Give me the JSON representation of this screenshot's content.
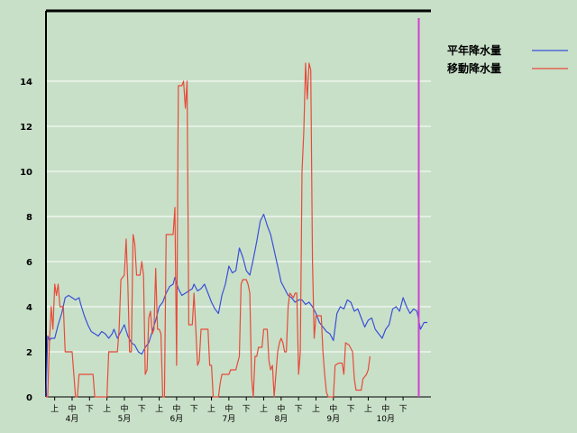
{
  "chart_data": {
    "type": "line",
    "title": "",
    "xlabel": "",
    "ylabel": "",
    "ylim": [
      0,
      16
    ],
    "y_ticks": [
      0,
      2,
      4,
      6,
      8,
      10,
      12,
      14
    ],
    "grid": true,
    "legend_position": "top-right",
    "x_range_days": [
      1,
      222
    ],
    "x_ticks": [
      {
        "day": 6,
        "label": "上"
      },
      {
        "day": 16,
        "label": "中"
      },
      {
        "day": 26,
        "label": "下"
      },
      {
        "day": 36,
        "label": "上"
      },
      {
        "day": 46,
        "label": "中"
      },
      {
        "day": 56,
        "label": "下"
      },
      {
        "day": 66,
        "label": "上"
      },
      {
        "day": 76,
        "label": "中"
      },
      {
        "day": 86,
        "label": "下"
      },
      {
        "day": 96,
        "label": "上"
      },
      {
        "day": 106,
        "label": "中"
      },
      {
        "day": 116,
        "label": "下"
      },
      {
        "day": 126,
        "label": "上"
      },
      {
        "day": 136,
        "label": "中"
      },
      {
        "day": 146,
        "label": "下"
      },
      {
        "day": 156,
        "label": "上"
      },
      {
        "day": 166,
        "label": "中"
      },
      {
        "day": 176,
        "label": "下"
      },
      {
        "day": 186,
        "label": "上"
      },
      {
        "day": 196,
        "label": "中"
      },
      {
        "day": 206,
        "label": "下"
      }
    ],
    "month_labels": [
      {
        "day": 16,
        "label": "4月"
      },
      {
        "day": 46,
        "label": "5月"
      },
      {
        "day": 76,
        "label": "6月"
      },
      {
        "day": 106,
        "label": "7月"
      },
      {
        "day": 136,
        "label": "8月"
      },
      {
        "day": 166,
        "label": "9月"
      },
      {
        "day": 196,
        "label": "10月"
      }
    ],
    "marker_day": 215,
    "series": [
      {
        "name": "平年降水量",
        "color": "#3a4fd8",
        "points": [
          [
            1,
            0
          ],
          [
            2,
            2.7
          ],
          [
            3,
            2.5
          ],
          [
            4,
            2.6
          ],
          [
            6,
            2.6
          ],
          [
            7,
            2.9
          ],
          [
            8,
            3.2
          ],
          [
            10,
            3.7
          ],
          [
            12,
            4.4
          ],
          [
            14,
            4.5
          ],
          [
            16,
            4.4
          ],
          [
            18,
            4.3
          ],
          [
            20,
            4.4
          ],
          [
            21,
            4.1
          ],
          [
            23,
            3.6
          ],
          [
            25,
            3.2
          ],
          [
            27,
            2.9
          ],
          [
            29,
            2.8
          ],
          [
            31,
            2.7
          ],
          [
            33,
            2.9
          ],
          [
            35,
            2.8
          ],
          [
            37,
            2.6
          ],
          [
            39,
            2.8
          ],
          [
            40,
            3.0
          ],
          [
            42,
            2.6
          ],
          [
            44,
            2.9
          ],
          [
            46,
            3.2
          ],
          [
            48,
            2.7
          ],
          [
            50,
            2.4
          ],
          [
            52,
            2.3
          ],
          [
            54,
            2.0
          ],
          [
            56,
            1.9
          ],
          [
            58,
            2.2
          ],
          [
            60,
            2.4
          ],
          [
            62,
            2.9
          ],
          [
            64,
            3.4
          ],
          [
            66,
            4.0
          ],
          [
            68,
            4.2
          ],
          [
            70,
            4.6
          ],
          [
            72,
            4.9
          ],
          [
            74,
            5.0
          ],
          [
            75,
            5.3
          ],
          [
            77,
            4.8
          ],
          [
            79,
            4.5
          ],
          [
            81,
            4.6
          ],
          [
            83,
            4.7
          ],
          [
            85,
            4.8
          ],
          [
            86,
            5.0
          ],
          [
            88,
            4.7
          ],
          [
            90,
            4.8
          ],
          [
            92,
            5.0
          ],
          [
            94,
            4.6
          ],
          [
            96,
            4.2
          ],
          [
            98,
            3.9
          ],
          [
            100,
            3.7
          ],
          [
            102,
            4.5
          ],
          [
            104,
            5.0
          ],
          [
            106,
            5.8
          ],
          [
            108,
            5.5
          ],
          [
            110,
            5.6
          ],
          [
            112,
            6.6
          ],
          [
            114,
            6.2
          ],
          [
            116,
            5.6
          ],
          [
            118,
            5.4
          ],
          [
            120,
            6.1
          ],
          [
            122,
            6.9
          ],
          [
            124,
            7.8
          ],
          [
            126,
            8.1
          ],
          [
            128,
            7.6
          ],
          [
            130,
            7.2
          ],
          [
            132,
            6.5
          ],
          [
            134,
            5.8
          ],
          [
            136,
            5.1
          ],
          [
            138,
            4.8
          ],
          [
            140,
            4.5
          ],
          [
            142,
            4.4
          ],
          [
            144,
            4.2
          ],
          [
            146,
            4.3
          ],
          [
            148,
            4.3
          ],
          [
            150,
            4.1
          ],
          [
            152,
            4.2
          ],
          [
            154,
            4.0
          ],
          [
            156,
            3.7
          ],
          [
            158,
            3.3
          ],
          [
            160,
            3.1
          ],
          [
            162,
            2.9
          ],
          [
            164,
            2.8
          ],
          [
            166,
            2.5
          ],
          [
            168,
            3.7
          ],
          [
            170,
            4.0
          ],
          [
            172,
            3.9
          ],
          [
            174,
            4.3
          ],
          [
            176,
            4.2
          ],
          [
            178,
            3.8
          ],
          [
            180,
            3.9
          ],
          [
            182,
            3.5
          ],
          [
            184,
            3.1
          ],
          [
            186,
            3.4
          ],
          [
            188,
            3.5
          ],
          [
            190,
            3.0
          ],
          [
            192,
            2.8
          ],
          [
            194,
            2.6
          ],
          [
            196,
            3.0
          ],
          [
            198,
            3.2
          ],
          [
            200,
            3.9
          ],
          [
            202,
            4.0
          ],
          [
            204,
            3.8
          ],
          [
            206,
            4.4
          ],
          [
            208,
            4.0
          ],
          [
            210,
            3.7
          ],
          [
            212,
            3.9
          ],
          [
            214,
            3.8
          ],
          [
            216,
            3.0
          ],
          [
            218,
            3.3
          ],
          [
            220,
            3.3
          ]
        ]
      },
      {
        "name": "移動降水量",
        "color": "#e84a3a",
        "points": [
          [
            1,
            0
          ],
          [
            2,
            0
          ],
          [
            3,
            2.5
          ],
          [
            4,
            4.0
          ],
          [
            5,
            3.0
          ],
          [
            6,
            5.0
          ],
          [
            7,
            4.5
          ],
          [
            8,
            5.0
          ],
          [
            9,
            4.0
          ],
          [
            10,
            4.0
          ],
          [
            11,
            4.0
          ],
          [
            12,
            2.0
          ],
          [
            14,
            2.0
          ],
          [
            16,
            2.0
          ],
          [
            18,
            0
          ],
          [
            19,
            0
          ],
          [
            20,
            1.0
          ],
          [
            24,
            1.0
          ],
          [
            28,
            1.0
          ],
          [
            29,
            0
          ],
          [
            36,
            0
          ],
          [
            37,
            2.0
          ],
          [
            41,
            2.0
          ],
          [
            42,
            2.0
          ],
          [
            43,
            3.0
          ],
          [
            44,
            5.2
          ],
          [
            46,
            5.4
          ],
          [
            47,
            7.0
          ],
          [
            48,
            5.0
          ],
          [
            49,
            2.0
          ],
          [
            50,
            2.0
          ],
          [
            51,
            7.2
          ],
          [
            52,
            6.8
          ],
          [
            53,
            5.4
          ],
          [
            55,
            5.4
          ],
          [
            56,
            6.0
          ],
          [
            57,
            5.4
          ],
          [
            58,
            1.0
          ],
          [
            59,
            1.2
          ],
          [
            60,
            3.5
          ],
          [
            61,
            3.8
          ],
          [
            62,
            2.8
          ],
          [
            63,
            3.0
          ],
          [
            64,
            5.7
          ],
          [
            65,
            3.0
          ],
          [
            66,
            3.0
          ],
          [
            67,
            2.8
          ],
          [
            68,
            0
          ],
          [
            69,
            0
          ],
          [
            70,
            7.2
          ],
          [
            71,
            7.2
          ],
          [
            73,
            7.2
          ],
          [
            74,
            7.2
          ],
          [
            75,
            8.4
          ],
          [
            76,
            1.4
          ],
          [
            77,
            13.8
          ],
          [
            79,
            13.8
          ],
          [
            80,
            14.0
          ],
          [
            81,
            12.8
          ],
          [
            82,
            14.0
          ],
          [
            83,
            3.2
          ],
          [
            85,
            3.2
          ],
          [
            86,
            4.6
          ],
          [
            87,
            3.0
          ],
          [
            88,
            1.4
          ],
          [
            89,
            1.6
          ],
          [
            90,
            3.0
          ],
          [
            92,
            3.0
          ],
          [
            94,
            3.0
          ],
          [
            95,
            1.4
          ],
          [
            96,
            1.4
          ],
          [
            97,
            0
          ],
          [
            98,
            0
          ],
          [
            100,
            0
          ],
          [
            101,
            0.6
          ],
          [
            102,
            1.0
          ],
          [
            104,
            1.0
          ],
          [
            106,
            1.0
          ],
          [
            107,
            1.2
          ],
          [
            110,
            1.2
          ],
          [
            111,
            1.5
          ],
          [
            112,
            1.8
          ],
          [
            113,
            5.0
          ],
          [
            114,
            5.2
          ],
          [
            116,
            5.2
          ],
          [
            117,
            5.0
          ],
          [
            118,
            4.6
          ],
          [
            119,
            0.9
          ],
          [
            120,
            0
          ],
          [
            121,
            1.8
          ],
          [
            122,
            1.8
          ],
          [
            123,
            2.2
          ],
          [
            125,
            2.2
          ],
          [
            126,
            3.0
          ],
          [
            127,
            3.0
          ],
          [
            128,
            3.0
          ],
          [
            129,
            1.6
          ],
          [
            130,
            1.2
          ],
          [
            131,
            1.4
          ],
          [
            132,
            0
          ],
          [
            133,
            1.0
          ],
          [
            134,
            2.0
          ],
          [
            135,
            2.4
          ],
          [
            136,
            2.6
          ],
          [
            137,
            2.4
          ],
          [
            138,
            2.0
          ],
          [
            139,
            2.0
          ],
          [
            140,
            4.0
          ],
          [
            141,
            4.6
          ],
          [
            143,
            4.4
          ],
          [
            144,
            4.6
          ],
          [
            145,
            4.6
          ],
          [
            146,
            1.0
          ],
          [
            147,
            2.0
          ],
          [
            148,
            10.0
          ],
          [
            149,
            11.8
          ],
          [
            150,
            14.8
          ],
          [
            151,
            13.2
          ],
          [
            152,
            14.8
          ],
          [
            153,
            14.5
          ],
          [
            154,
            6.0
          ],
          [
            155,
            2.6
          ],
          [
            156,
            3.6
          ],
          [
            157,
            3.6
          ],
          [
            159,
            3.6
          ],
          [
            160,
            2.0
          ],
          [
            161,
            1.0
          ],
          [
            162,
            0.2
          ],
          [
            163,
            0
          ],
          [
            164,
            0
          ],
          [
            165,
            0
          ],
          [
            166,
            0
          ],
          [
            167,
            1.4
          ],
          [
            169,
            1.5
          ],
          [
            171,
            1.5
          ],
          [
            172,
            1.0
          ],
          [
            173,
            2.4
          ],
          [
            175,
            2.3
          ],
          [
            177,
            2.0
          ],
          [
            178,
            0.8
          ],
          [
            179,
            0.3
          ],
          [
            180,
            0.3
          ],
          [
            182,
            0.3
          ],
          [
            183,
            0.8
          ],
          [
            185,
            1.0
          ],
          [
            186,
            1.2
          ],
          [
            187,
            1.8
          ]
        ]
      }
    ]
  }
}
